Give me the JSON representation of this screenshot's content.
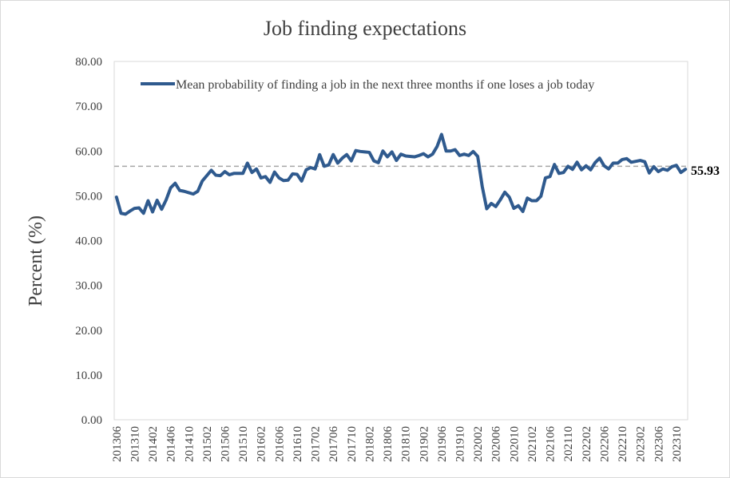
{
  "chart_data": {
    "type": "line",
    "title": "Job finding expectations",
    "xlabel": "",
    "ylabel": "Percent (%)",
    "ylim": [
      0,
      80
    ],
    "y_ticks": [
      "0.00",
      "10.00",
      "20.00",
      "30.00",
      "40.00",
      "50.00",
      "60.00",
      "70.00",
      "80.00"
    ],
    "x_tick_labels": [
      "201306",
      "201310",
      "201402",
      "201406",
      "201410",
      "201502",
      "201506",
      "201510",
      "201602",
      "201606",
      "201610",
      "201702",
      "201706",
      "201710",
      "201802",
      "201806",
      "201810",
      "201902",
      "201906",
      "201910",
      "202002",
      "202006",
      "202010",
      "202102",
      "202106",
      "202110",
      "202202",
      "202206",
      "202210",
      "202302",
      "202306",
      "202310"
    ],
    "grid": false,
    "legend_position": "top",
    "series": [
      {
        "name": "Mean probability of finding a job in the next three months if one loses a job today",
        "color": "#2f5a8e",
        "x": [
          "201306",
          "201307",
          "201308",
          "201309",
          "201310",
          "201311",
          "201312",
          "201401",
          "201402",
          "201403",
          "201404",
          "201405",
          "201406",
          "201407",
          "201408",
          "201409",
          "201410",
          "201411",
          "201412",
          "201501",
          "201502",
          "201503",
          "201504",
          "201505",
          "201506",
          "201507",
          "201508",
          "201509",
          "201510",
          "201511",
          "201512",
          "201601",
          "201602",
          "201603",
          "201604",
          "201605",
          "201606",
          "201607",
          "201608",
          "201609",
          "201610",
          "201611",
          "201612",
          "201701",
          "201702",
          "201703",
          "201704",
          "201705",
          "201706",
          "201707",
          "201708",
          "201709",
          "201710",
          "201711",
          "201712",
          "201801",
          "201802",
          "201803",
          "201804",
          "201805",
          "201806",
          "201807",
          "201808",
          "201809",
          "201810",
          "201811",
          "201812",
          "201901",
          "201902",
          "201903",
          "201904",
          "201905",
          "201906",
          "201907",
          "201908",
          "201909",
          "201910",
          "201911",
          "201912",
          "202001",
          "202002",
          "202003",
          "202004",
          "202005",
          "202006",
          "202007",
          "202008",
          "202009",
          "202010",
          "202011",
          "202012",
          "202101",
          "202102",
          "202103",
          "202104",
          "202105",
          "202106",
          "202107",
          "202108",
          "202109",
          "202110",
          "202111",
          "202112",
          "202201",
          "202202",
          "202203",
          "202204",
          "202205",
          "202206",
          "202207",
          "202208",
          "202209",
          "202210",
          "202211",
          "202212",
          "202301",
          "202302",
          "202303",
          "202304",
          "202305",
          "202306",
          "202307",
          "202308",
          "202309",
          "202310",
          "202311",
          "202312"
        ],
        "values": [
          49.7,
          46.1,
          45.9,
          46.6,
          47.2,
          47.3,
          46.1,
          48.9,
          46.4,
          49.0,
          47.0,
          49.1,
          51.8,
          52.8,
          51.2,
          51.0,
          50.7,
          50.4,
          51.0,
          53.3,
          54.5,
          55.7,
          54.6,
          54.5,
          55.4,
          54.7,
          55.0,
          55.0,
          55.0,
          57.3,
          55.2,
          56.0,
          54.0,
          54.3,
          53.0,
          55.3,
          54.0,
          53.4,
          53.5,
          54.9,
          54.8,
          53.3,
          55.8,
          56.3,
          56.0,
          59.2,
          56.6,
          56.9,
          59.2,
          57.3,
          58.4,
          59.2,
          57.8,
          60.1,
          59.9,
          59.8,
          59.7,
          57.8,
          57.4,
          60.0,
          58.7,
          59.8,
          57.9,
          59.3,
          58.9,
          58.8,
          58.7,
          59.0,
          59.4,
          58.7,
          59.3,
          61.0,
          63.7,
          60.0,
          60.0,
          60.3,
          59.0,
          59.3,
          59.0,
          59.9,
          58.8,
          52.1,
          47.1,
          48.3,
          47.6,
          49.1,
          50.8,
          49.7,
          47.2,
          47.8,
          46.5,
          49.5,
          48.9,
          48.9,
          49.9,
          54.0,
          54.3,
          57.0,
          55.0,
          55.2,
          56.6,
          55.9,
          57.5,
          55.8,
          56.7,
          55.8,
          57.4,
          58.4,
          56.7,
          56.0,
          57.3,
          57.3,
          58.1,
          58.3,
          57.5,
          57.7,
          57.9,
          57.6,
          55.1,
          56.5,
          55.4,
          56.0,
          55.7,
          56.5,
          56.8,
          55.2,
          55.93
        ]
      }
    ],
    "reference_line": {
      "value": 56.6,
      "style": "dashed",
      "color": "#a6a6a6"
    },
    "end_label": "55.93"
  }
}
